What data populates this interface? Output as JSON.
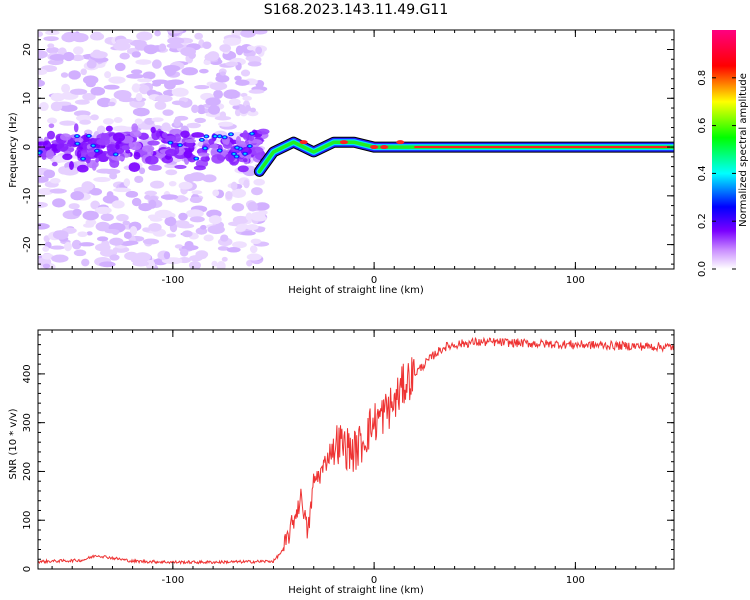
{
  "title": "S168.2023.143.11.49.G11",
  "chart_data": [
    {
      "type": "heatmap",
      "xlabel": "Height of straight line (km)",
      "ylabel": "Frequency (Hz)",
      "xlim": [
        -167,
        149
      ],
      "ylim": [
        -25,
        24
      ],
      "x_ticks": [
        -100,
        0,
        100
      ],
      "y_ticks": [
        -20,
        -10,
        0,
        10,
        20
      ],
      "colorbar": {
        "label": "Normalized spectral amplitude",
        "range": [
          0,
          1
        ],
        "ticks": [
          "0.0",
          "0.2",
          "0.4",
          "0.6",
          "0.8"
        ],
        "colors": [
          "#ffffff",
          "#c98cff",
          "#7a00ff",
          "#0000ff",
          "#00ffff",
          "#00ff00",
          "#ffff00",
          "#ff0000",
          "#ff0080"
        ]
      },
      "features": {
        "noise_region_x": [
          -167,
          -55
        ],
        "signal_start_x": -57,
        "signal_freq_points": [
          [
            -57,
            -5
          ],
          [
            -50,
            -1
          ],
          [
            -40,
            1
          ],
          [
            -30,
            -1
          ],
          [
            -20,
            1
          ],
          [
            -10,
            1
          ],
          [
            0,
            0
          ],
          [
            10,
            0
          ],
          [
            20,
            0
          ],
          [
            149,
            0
          ]
        ]
      }
    },
    {
      "type": "line",
      "xlabel": "Height of straight line (km)",
      "ylabel": "SNR (10 * v/v)",
      "xlim": [
        -167,
        149
      ],
      "ylim": [
        0,
        490
      ],
      "x_ticks": [
        -100,
        0,
        100
      ],
      "y_ticks": [
        0,
        100,
        200,
        300,
        400
      ],
      "color": "#ee3333",
      "x": [
        -167,
        -145,
        -138,
        -120,
        -100,
        -80,
        -60,
        -50,
        -45,
        -40,
        -36,
        -33,
        -30,
        -26,
        -22,
        -18,
        -14,
        -10,
        -6,
        -2,
        0,
        5,
        10,
        15,
        20,
        25,
        30,
        35,
        40,
        50,
        60,
        80,
        100,
        120,
        149
      ],
      "values": [
        15,
        18,
        28,
        16,
        14,
        14,
        15,
        16,
        40,
        100,
        150,
        70,
        180,
        200,
        240,
        260,
        250,
        240,
        260,
        290,
        300,
        320,
        340,
        380,
        400,
        420,
        440,
        455,
        460,
        465,
        465,
        462,
        460,
        458,
        455
      ]
    }
  ]
}
